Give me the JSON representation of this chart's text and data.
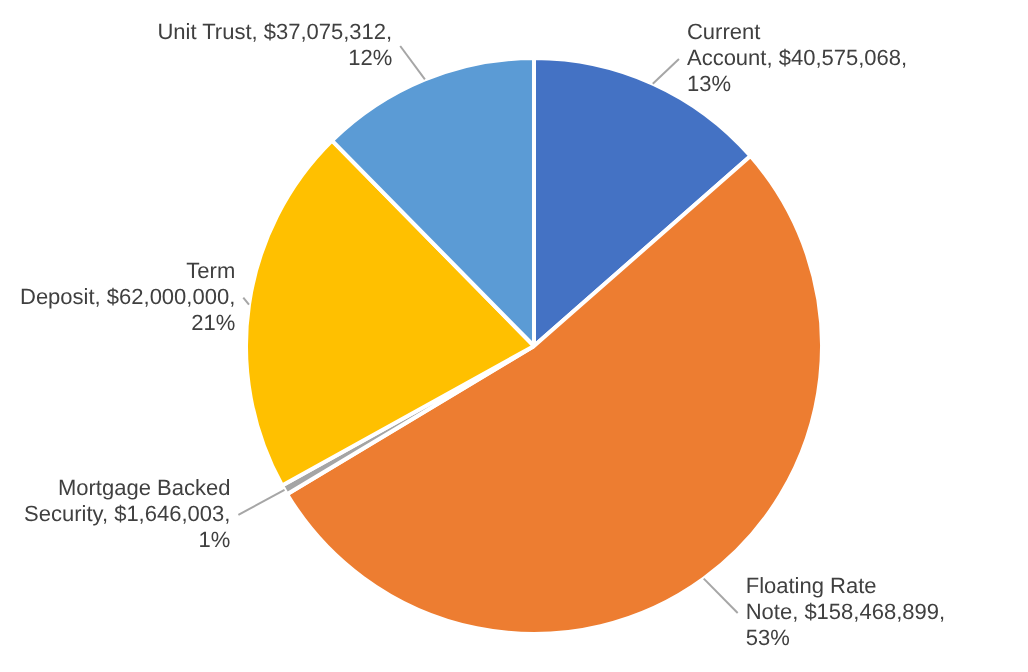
{
  "chart_data": {
    "type": "pie",
    "categories": [
      "Current Account",
      "Floating Rate Note",
      "Mortgage Backed Security",
      "Term Deposit",
      "Unit Trust"
    ],
    "values": [
      40575068,
      158468899,
      1646003,
      62000000,
      37075312
    ],
    "value_labels": [
      "$40,575,068, 13%",
      "$158,468,899, 53%",
      "$1,646,003, 1%",
      "$62,000,000, 21%",
      "$37,075,312, 12%"
    ],
    "colors": [
      "#4472c4",
      "#ed7d31",
      "#a5a5a5",
      "#ffc000",
      "#5b9bd5"
    ],
    "legend": false
  }
}
